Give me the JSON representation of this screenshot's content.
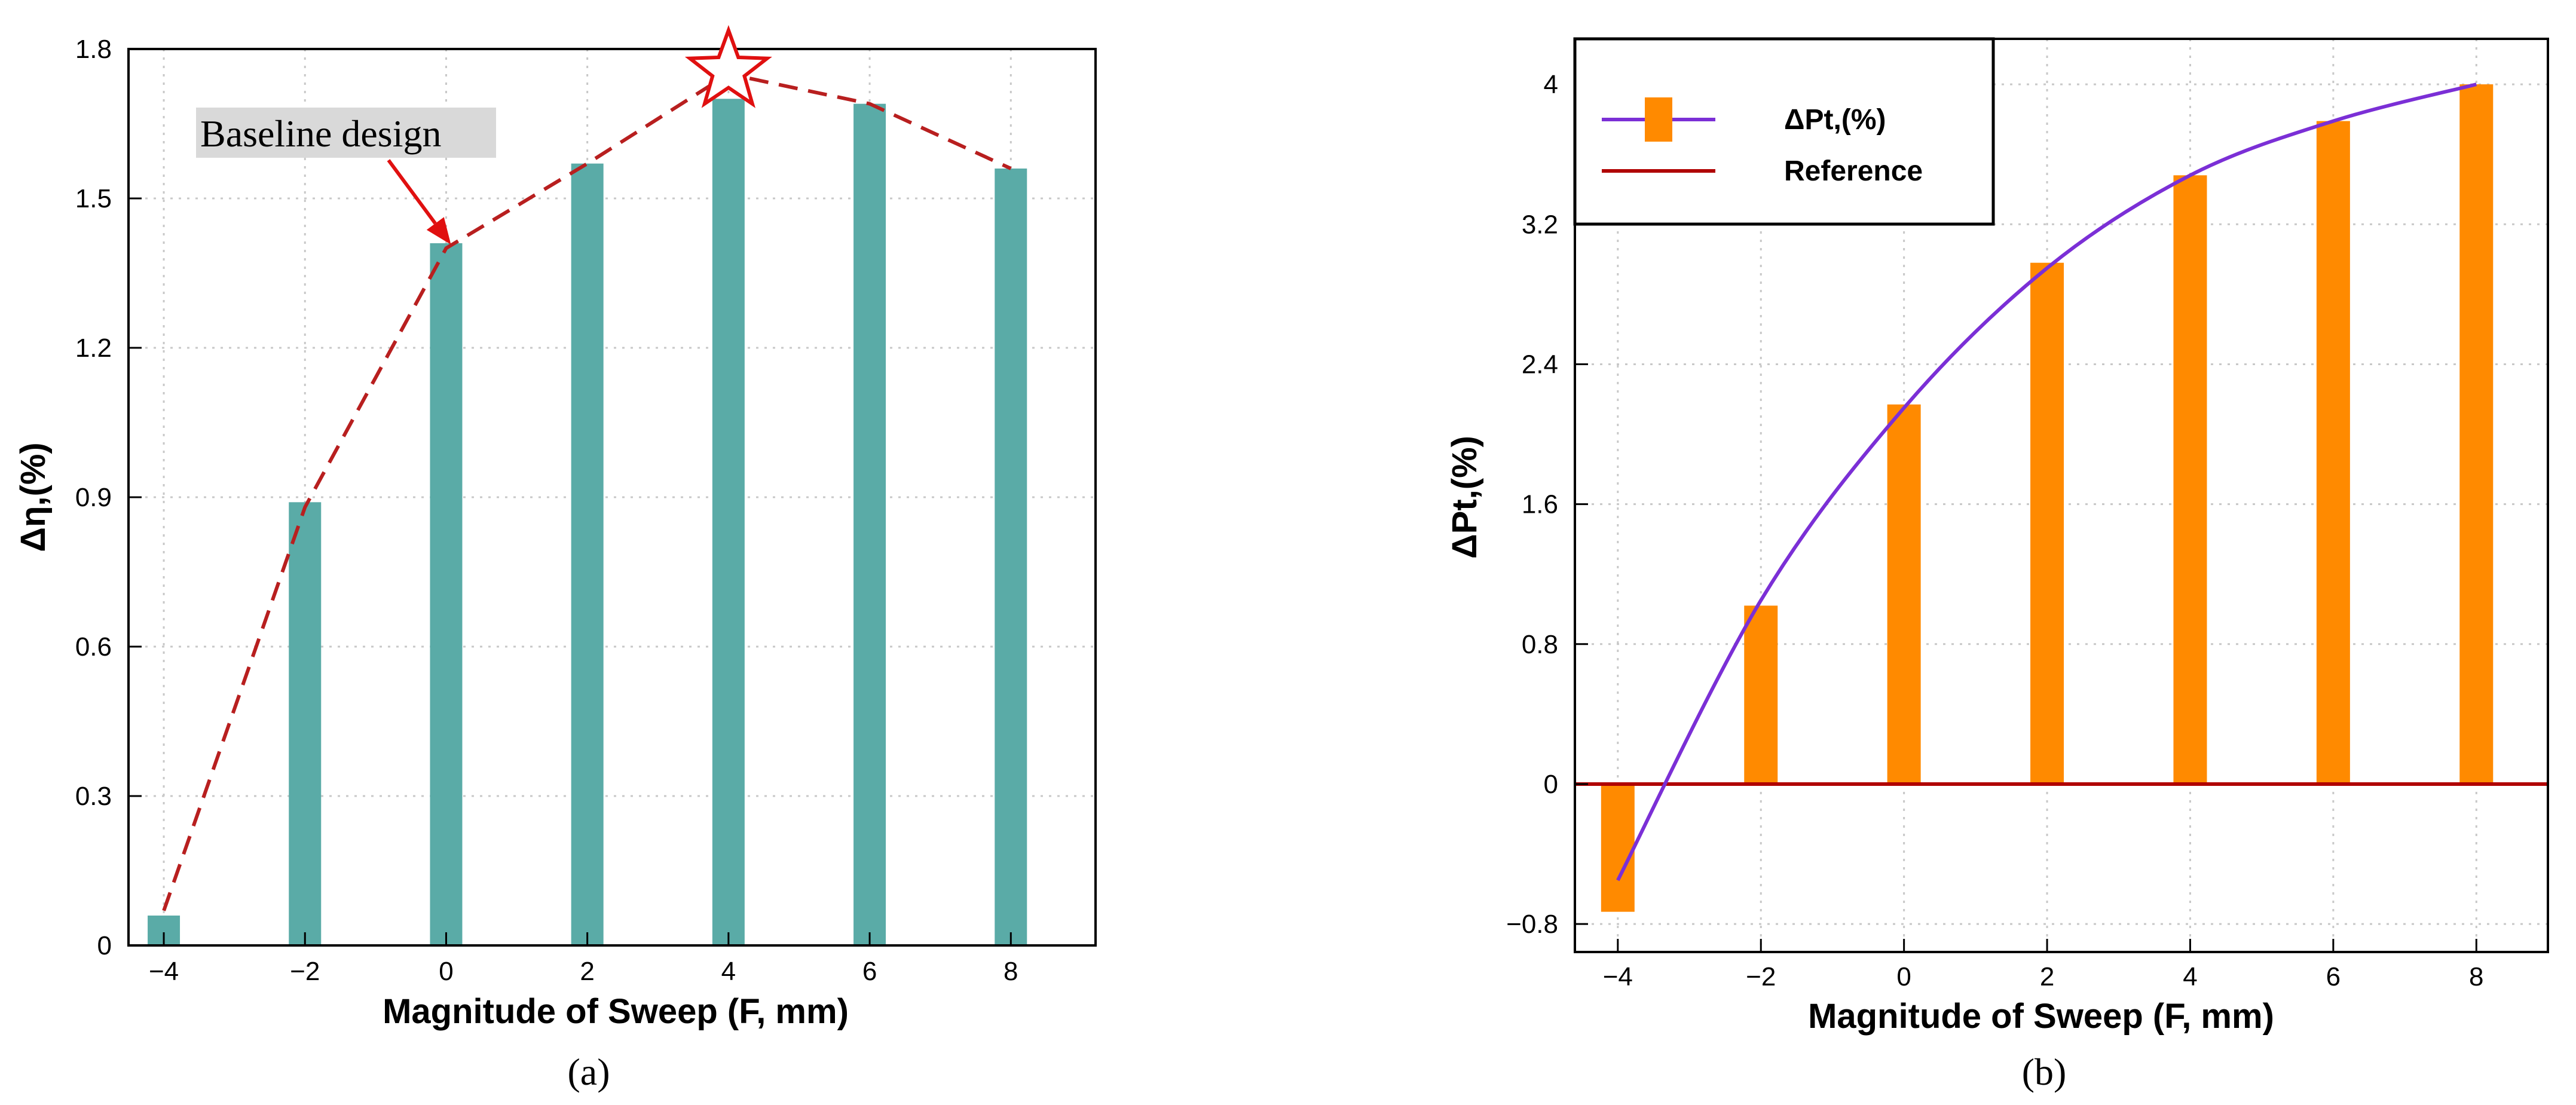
{
  "chart_data": [
    {
      "type": "bar",
      "panel_label": "(a)",
      "xlabel": "Magnitude of Sweep (F, mm)",
      "ylabel": "Δη,(%)",
      "x": [
        -4,
        -2,
        0,
        2,
        4,
        6,
        8
      ],
      "x_ticks": [
        "−4",
        "−2",
        "0",
        "2",
        "4",
        "6",
        "8"
      ],
      "values": [
        0.06,
        0.89,
        1.41,
        1.57,
        1.7,
        1.69,
        1.56
      ],
      "trend_line": [
        0.07,
        0.88,
        1.4,
        1.57,
        1.75,
        1.69,
        1.56
      ],
      "ylim": [
        0,
        1.8
      ],
      "y_ticks": [
        0,
        0.3,
        0.6,
        0.9,
        1.2,
        1.5,
        1.8
      ],
      "y_tick_labels": [
        "0",
        "0.3",
        "0.6",
        "0.9",
        "1.2",
        "1.5",
        "1.8"
      ],
      "grid": true,
      "colors": {
        "bar": "#5aaba7",
        "trend": "#b81f1f",
        "annotation": "#e01010",
        "star": "#e01010"
      },
      "annotations": [
        {
          "text": "Baseline design",
          "points_to_x": 0
        },
        {
          "marker": "star",
          "at_x": 4
        }
      ]
    },
    {
      "type": "bar",
      "panel_label": "(b)",
      "xlabel": "Magnitude of Sweep (F, mm)",
      "ylabel": "ΔPt,(%)",
      "x": [
        -4,
        -2,
        0,
        2,
        4,
        6,
        8
      ],
      "x_ticks": [
        "−4",
        "−2",
        "0",
        "2",
        "4",
        "6",
        "8"
      ],
      "values": [
        -0.73,
        1.02,
        2.17,
        2.98,
        3.48,
        3.79,
        4.0
      ],
      "curve": [
        -0.55,
        1.05,
        2.15,
        2.95,
        3.48,
        3.79,
        4.0
      ],
      "reference": 0,
      "ylim": [
        -0.96,
        4.26
      ],
      "y_ticks": [
        -0.8,
        0,
        0.8,
        1.6,
        2.4,
        3.2,
        4
      ],
      "y_tick_labels": [
        "−0.8",
        "0",
        "0.8",
        "1.6",
        "2.4",
        "3.2",
        "4"
      ],
      "grid": true,
      "legend": [
        {
          "label": "ΔPt,(%)",
          "kind": "bar+line"
        },
        {
          "label": "Reference",
          "kind": "line"
        }
      ],
      "legend_position": "top-left",
      "colors": {
        "bar": "#ff8a00",
        "curve": "#7b2fd6",
        "reference": "#b00000"
      }
    }
  ]
}
